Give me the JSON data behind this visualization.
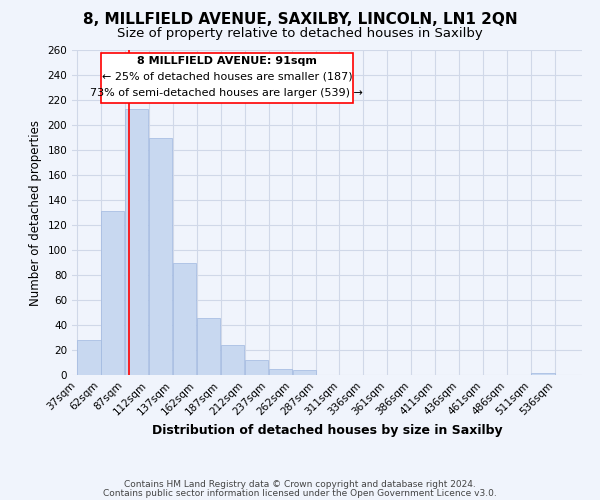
{
  "title1": "8, MILLFIELD AVENUE, SAXILBY, LINCOLN, LN1 2QN",
  "title2": "Size of property relative to detached houses in Saxilby",
  "xlabel": "Distribution of detached houses by size in Saxilby",
  "ylabel": "Number of detached properties",
  "bar_color": "#c8d8f0",
  "bar_edge_color": "#a0b8e0",
  "bin_labels": [
    "37sqm",
    "62sqm",
    "87sqm",
    "112sqm",
    "137sqm",
    "162sqm",
    "187sqm",
    "212sqm",
    "237sqm",
    "262sqm",
    "287sqm",
    "311sqm",
    "336sqm",
    "361sqm",
    "386sqm",
    "411sqm",
    "436sqm",
    "461sqm",
    "486sqm",
    "511sqm",
    "536sqm"
  ],
  "bar_heights": [
    28,
    131,
    213,
    190,
    90,
    46,
    24,
    12,
    5,
    4,
    0,
    0,
    0,
    0,
    0,
    0,
    0,
    0,
    0,
    2
  ],
  "ylim": [
    0,
    260
  ],
  "yticks": [
    0,
    20,
    40,
    60,
    80,
    100,
    120,
    140,
    160,
    180,
    200,
    220,
    240,
    260
  ],
  "red_line_x": 91,
  "bin_edges_start": [
    37,
    62,
    87,
    112,
    137,
    162,
    187,
    212,
    237,
    262,
    287,
    311,
    336,
    361,
    386,
    411,
    436,
    461,
    486,
    511,
    536
  ],
  "annotation_title": "8 MILLFIELD AVENUE: 91sqm",
  "annotation_line1": "← 25% of detached houses are smaller (187)",
  "annotation_line2": "73% of semi-detached houses are larger (539) →",
  "footer1": "Contains HM Land Registry data © Crown copyright and database right 2024.",
  "footer2": "Contains public sector information licensed under the Open Government Licence v3.0.",
  "background_color": "#f0f4fc",
  "grid_color": "#d0d8e8",
  "title1_fontsize": 11,
  "title2_fontsize": 9.5,
  "xlabel_fontsize": 9,
  "ylabel_fontsize": 8.5,
  "tick_fontsize": 7.5,
  "annotation_fontsize": 8,
  "footer_fontsize": 6.5
}
